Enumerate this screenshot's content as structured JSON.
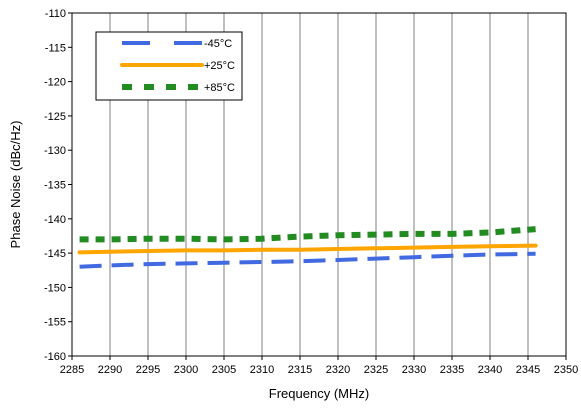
{
  "chart_data": {
    "type": "line",
    "title": "",
    "xlabel": "Frequency (MHz)",
    "ylabel": "Phase Noise (dBc/Hz)",
    "xlim": [
      2285,
      2350
    ],
    "ylim": [
      -160,
      -110
    ],
    "xticks": [
      2285,
      2290,
      2295,
      2300,
      2305,
      2310,
      2315,
      2320,
      2325,
      2330,
      2335,
      2340,
      2345,
      2350
    ],
    "yticks": [
      -160,
      -155,
      -150,
      -145,
      -140,
      -135,
      -130,
      -125,
      -120,
      -115,
      -110
    ],
    "grid": "vertical",
    "legend_position": "top-left",
    "series": [
      {
        "name": "-45°C",
        "color": "#4169E1",
        "style": "dashed",
        "x": [
          2286,
          2290,
          2295,
          2300,
          2305,
          2310,
          2315,
          2320,
          2325,
          2330,
          2335,
          2340,
          2346
        ],
        "y": [
          -147.0,
          -146.8,
          -146.6,
          -146.5,
          -146.4,
          -146.3,
          -146.2,
          -146.0,
          -145.8,
          -145.6,
          -145.4,
          -145.2,
          -145.1
        ]
      },
      {
        "name": "+25°C",
        "color": "#FFA500",
        "style": "solid",
        "x": [
          2286,
          2290,
          2295,
          2300,
          2305,
          2310,
          2315,
          2320,
          2325,
          2330,
          2335,
          2340,
          2346
        ],
        "y": [
          -144.9,
          -144.8,
          -144.7,
          -144.6,
          -144.6,
          -144.5,
          -144.5,
          -144.4,
          -144.3,
          -144.2,
          -144.1,
          -144.0,
          -143.9
        ]
      },
      {
        "name": "+85°C",
        "color": "#228B22",
        "style": "dotted",
        "x": [
          2286,
          2290,
          2295,
          2300,
          2305,
          2310,
          2315,
          2320,
          2325,
          2330,
          2335,
          2340,
          2346
        ],
        "y": [
          -143.0,
          -143.0,
          -142.9,
          -142.9,
          -143.0,
          -142.9,
          -142.6,
          -142.4,
          -142.3,
          -142.2,
          -142.2,
          -142.0,
          -141.5
        ]
      }
    ]
  }
}
